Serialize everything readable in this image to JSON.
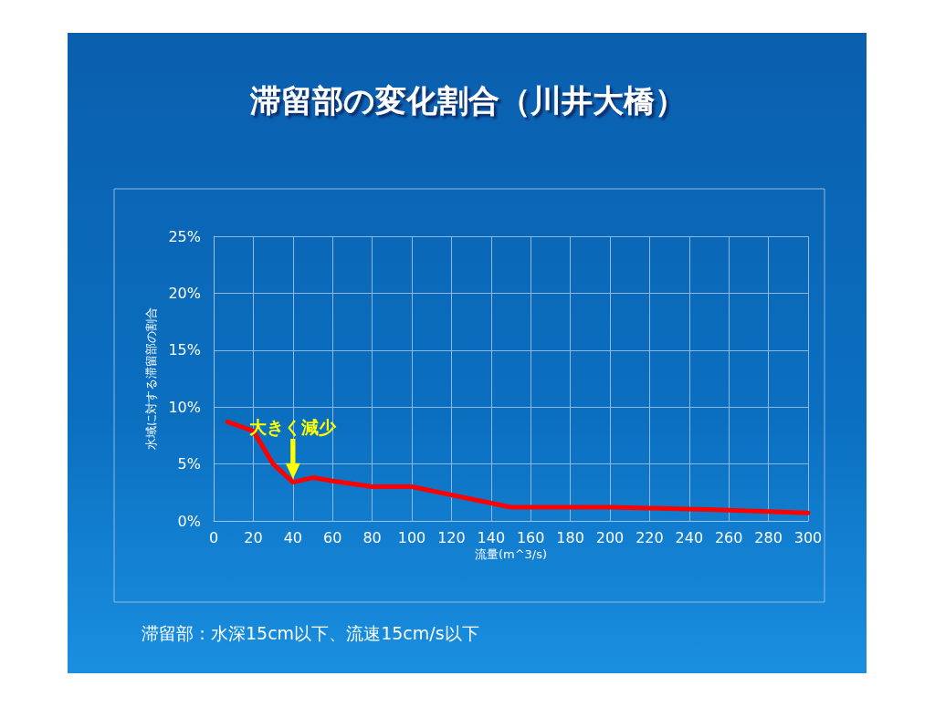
{
  "chart_data": {
    "type": "line",
    "title": "滞留部の変化割合（川井大橋）",
    "xlabel": "流量(m^3/s)",
    "ylabel": "水域に対する滞留部の割合",
    "series": [
      {
        "color": "#ff0000",
        "x": [
          7,
          20,
          30,
          40,
          50,
          60,
          80,
          100,
          150,
          200,
          250,
          300
        ],
        "values": [
          8.7,
          7.9,
          5.0,
          3.4,
          3.8,
          3.5,
          3.0,
          3.0,
          1.2,
          1.2,
          1.0,
          0.7
        ]
      }
    ],
    "xlim": [
      0,
      300
    ],
    "xticks": [
      0,
      20,
      40,
      60,
      80,
      100,
      120,
      140,
      160,
      180,
      200,
      220,
      240,
      260,
      280,
      300
    ],
    "ylim": [
      0,
      25
    ],
    "yticks": [
      {
        "value": 0,
        "label": "0%"
      },
      {
        "value": 5,
        "label": "5%"
      },
      {
        "value": 10,
        "label": "10%"
      },
      {
        "value": 15,
        "label": "15%"
      },
      {
        "value": 20,
        "label": "20%"
      },
      {
        "value": 25,
        "label": "25%"
      }
    ],
    "grid": true,
    "marker": "none",
    "line_style": "solid",
    "annotations": [
      {
        "text": "大きく減少",
        "x": 40,
        "y": 3.4
      },
      "滞留部：水深15cm以下、流速15cm/s以下"
    ]
  }
}
